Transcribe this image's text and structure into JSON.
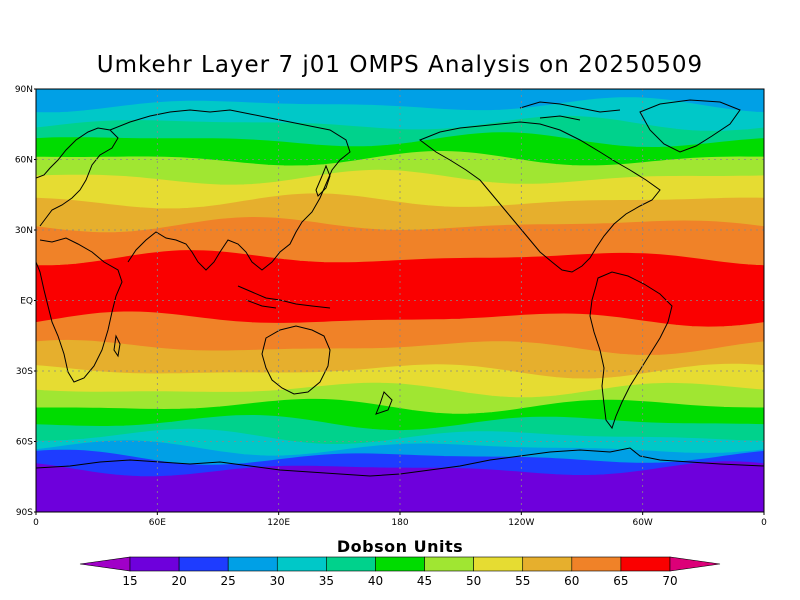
{
  "title": "Umkehr Layer 7 j01 OMPS Analysis on 20250509",
  "colorbar": {
    "title": "Dobson Units",
    "labels": [
      "15",
      "20",
      "25",
      "30",
      "35",
      "40",
      "45",
      "50",
      "55",
      "60",
      "65",
      "70"
    ],
    "colors": [
      "#a000c8",
      "#6e00dc",
      "#1e3cff",
      "#00a0e6",
      "#00c8c8",
      "#00d28c",
      "#00dc00",
      "#a0e632",
      "#e6dc32",
      "#e6af2d",
      "#f08228",
      "#fa0000",
      "#dc0078"
    ]
  },
  "axes": {
    "lat_labels": [
      "90N",
      "60N",
      "30N",
      "EQ",
      "30S",
      "60S",
      "90S"
    ],
    "lon_labels": [
      "0",
      "60E",
      "120E",
      "180",
      "120W",
      "60W",
      "0"
    ]
  },
  "chart_data": {
    "type": "heatmap",
    "title": "Umkehr Layer 7 j01 OMPS Analysis on 20250509",
    "units": "Dobson Units",
    "lat_range": [
      -90,
      90
    ],
    "lon_range": [
      0,
      360
    ],
    "zonal_band_colors_north_to_south": [
      {
        "lat": [
          83,
          90
        ],
        "color_index": 3
      },
      {
        "lat": [
          75,
          83
        ],
        "color_index": 4
      },
      {
        "lat": [
          68,
          75
        ],
        "color_index": 5
      },
      {
        "lat": [
          60,
          68
        ],
        "color_index": 6
      },
      {
        "lat": [
          52,
          60
        ],
        "color_index": 7
      },
      {
        "lat": [
          42,
          52
        ],
        "color_index": 8
      },
      {
        "lat": [
          32,
          42
        ],
        "color_index": 9
      },
      {
        "lat": [
          18,
          32
        ],
        "color_index": 10
      },
      {
        "lat": [
          -8,
          18
        ],
        "color_index": 11
      },
      {
        "lat": [
          -20,
          -8
        ],
        "color_index": 10
      },
      {
        "lat": [
          -30,
          -20
        ],
        "color_index": 9
      },
      {
        "lat": [
          -38,
          -30
        ],
        "color_index": 8
      },
      {
        "lat": [
          -45,
          -38
        ],
        "color_index": 7
      },
      {
        "lat": [
          -52,
          -45
        ],
        "color_index": 6
      },
      {
        "lat": [
          -58,
          -52
        ],
        "color_index": 5
      },
      {
        "lat": [
          -63,
          -58
        ],
        "color_index": 4
      },
      {
        "lat": [
          -67,
          -63
        ],
        "color_index": 3
      },
      {
        "lat": [
          -72,
          -67
        ],
        "color_index": 2
      },
      {
        "lat": [
          -90,
          -72
        ],
        "color_index": 1
      }
    ]
  }
}
